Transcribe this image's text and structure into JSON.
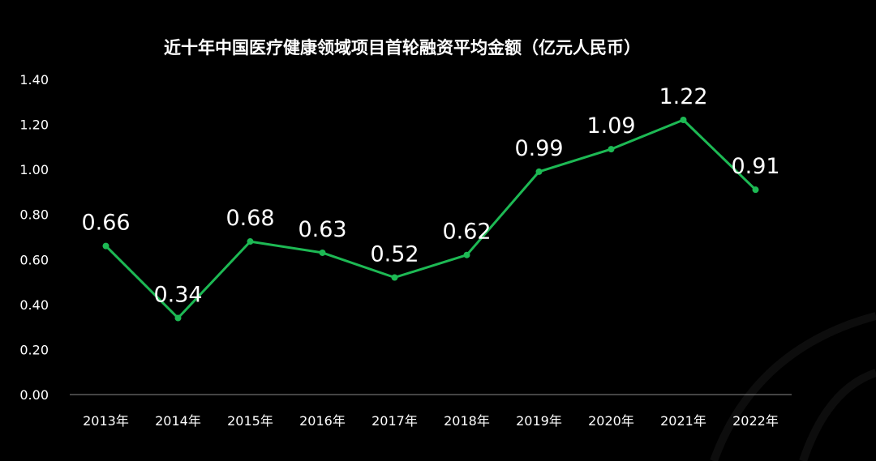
{
  "chart_data": {
    "type": "line",
    "title": "近十年中国医疗健康领域项目首轮融资平均金额（亿元人民币）",
    "xlabel": "",
    "ylabel": "",
    "categories": [
      "2013年",
      "2014年",
      "2015年",
      "2016年",
      "2017年",
      "2018年",
      "2019年",
      "2020年",
      "2021年",
      "2022年"
    ],
    "series": [
      {
        "values": [
          0.66,
          0.34,
          0.68,
          0.63,
          0.52,
          0.62,
          0.99,
          1.09,
          1.22,
          0.91
        ]
      }
    ],
    "data_labels": [
      "0.66",
      "0.34",
      "0.68",
      "0.63",
      "0.52",
      "0.62",
      "0.99",
      "1.09",
      "1.22",
      "0.91"
    ],
    "ylim": [
      0,
      1.4
    ],
    "yticks": [
      "0.00",
      "0.20",
      "0.40",
      "0.60",
      "0.80",
      "1.00",
      "1.20",
      "1.40"
    ],
    "grid": false,
    "legend": "none",
    "colors": {
      "line": "#1db954",
      "text": "#ffffff",
      "background": "#000000",
      "axis": "#8a8a8a"
    }
  }
}
